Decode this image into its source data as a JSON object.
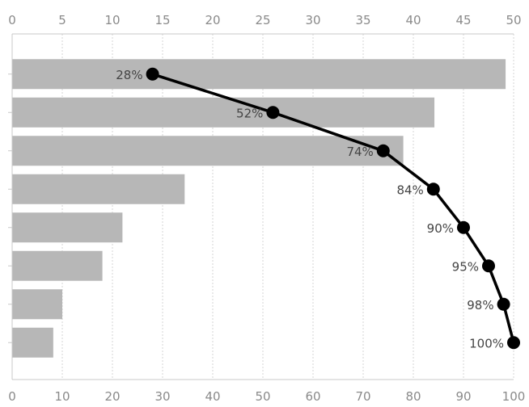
{
  "chart_data": {
    "type": "bar",
    "orientation": "horizontal",
    "bar_axis": {
      "position": "top",
      "range": [
        0,
        50
      ],
      "ticks": [
        "0",
        "5",
        "10",
        "15",
        "20",
        "25",
        "30",
        "35",
        "40",
        "45",
        "50"
      ]
    },
    "line_axis": {
      "position": "bottom",
      "range": [
        0,
        100
      ],
      "ticks": [
        "0",
        "10",
        "20",
        "30",
        "40",
        "50",
        "60",
        "70",
        "80",
        "90",
        "100"
      ]
    },
    "bar_values": [
      49.2,
      42.1,
      39.0,
      17.2,
      11.0,
      9.0,
      5.0,
      4.1
    ],
    "cumulative_values": [
      28,
      52,
      74,
      84,
      90,
      95,
      98,
      100
    ],
    "cumulative_labels": [
      "28%",
      "52%",
      "74%",
      "84%",
      "90%",
      "95%",
      "98%",
      "100%"
    ],
    "grid": "vertical",
    "colors": {
      "bar": "#b7b7b7",
      "line": "#000000",
      "grid": "#d4d4d4",
      "tick_text": "#8a8a8a"
    }
  }
}
